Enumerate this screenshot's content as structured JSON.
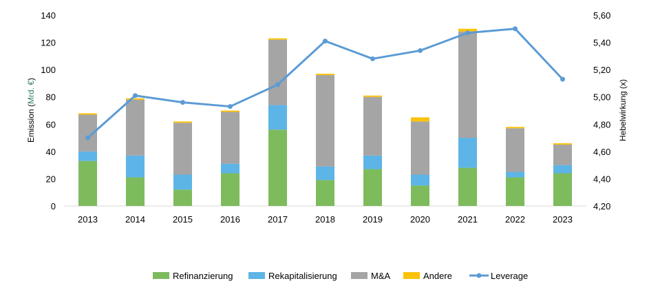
{
  "chart_data": {
    "type": "bar",
    "stacked": true,
    "categories": [
      "2013",
      "2014",
      "2015",
      "2016",
      "2017",
      "2018",
      "2019",
      "2020",
      "2021",
      "2022",
      "2023"
    ],
    "series": [
      {
        "name": "Refinanzierung",
        "color": "#7dbb5d",
        "values": [
          33,
          21,
          12,
          24,
          56,
          19,
          27,
          15,
          28,
          21,
          24
        ]
      },
      {
        "name": "Rekapitalisierung",
        "color": "#5db4e6",
        "values": [
          7,
          16,
          11,
          7,
          18,
          10,
          10,
          8,
          22,
          4,
          6
        ]
      },
      {
        "name": "M&A",
        "color": "#a5a5a5",
        "values": [
          27,
          41,
          38,
          38,
          48,
          67,
          43,
          39,
          78,
          32,
          15
        ]
      },
      {
        "name": "Andere",
        "color": "#fbc20a",
        "values": [
          1,
          1,
          1,
          1,
          1,
          1,
          1,
          3,
          2,
          1,
          1
        ]
      }
    ],
    "line_series": {
      "name": "Leverage",
      "color": "#5b9bd5",
      "values": [
        4.7,
        5.01,
        4.96,
        4.93,
        5.09,
        5.41,
        5.28,
        5.34,
        5.47,
        5.5,
        5.13
      ]
    },
    "ylim": [
      0,
      140
    ],
    "y_ticks": [
      "0",
      "20",
      "40",
      "60",
      "80",
      "100",
      "120",
      "140"
    ],
    "y2lim": [
      4.2,
      5.6
    ],
    "y2_ticks": [
      "4,20",
      "4,40",
      "4,60",
      "4,80",
      "5,00",
      "5,20",
      "5,40",
      "5,60"
    ],
    "ylabel_prefix": "Emission (",
    "ylabel_unit": "Mrd. €",
    "ylabel_suffix": ")",
    "y2label": "Hebelwirkung (x)",
    "grid": false,
    "legend_position": "bottom",
    "colors": {
      "ylabel_unit": "#2e7d62"
    }
  }
}
